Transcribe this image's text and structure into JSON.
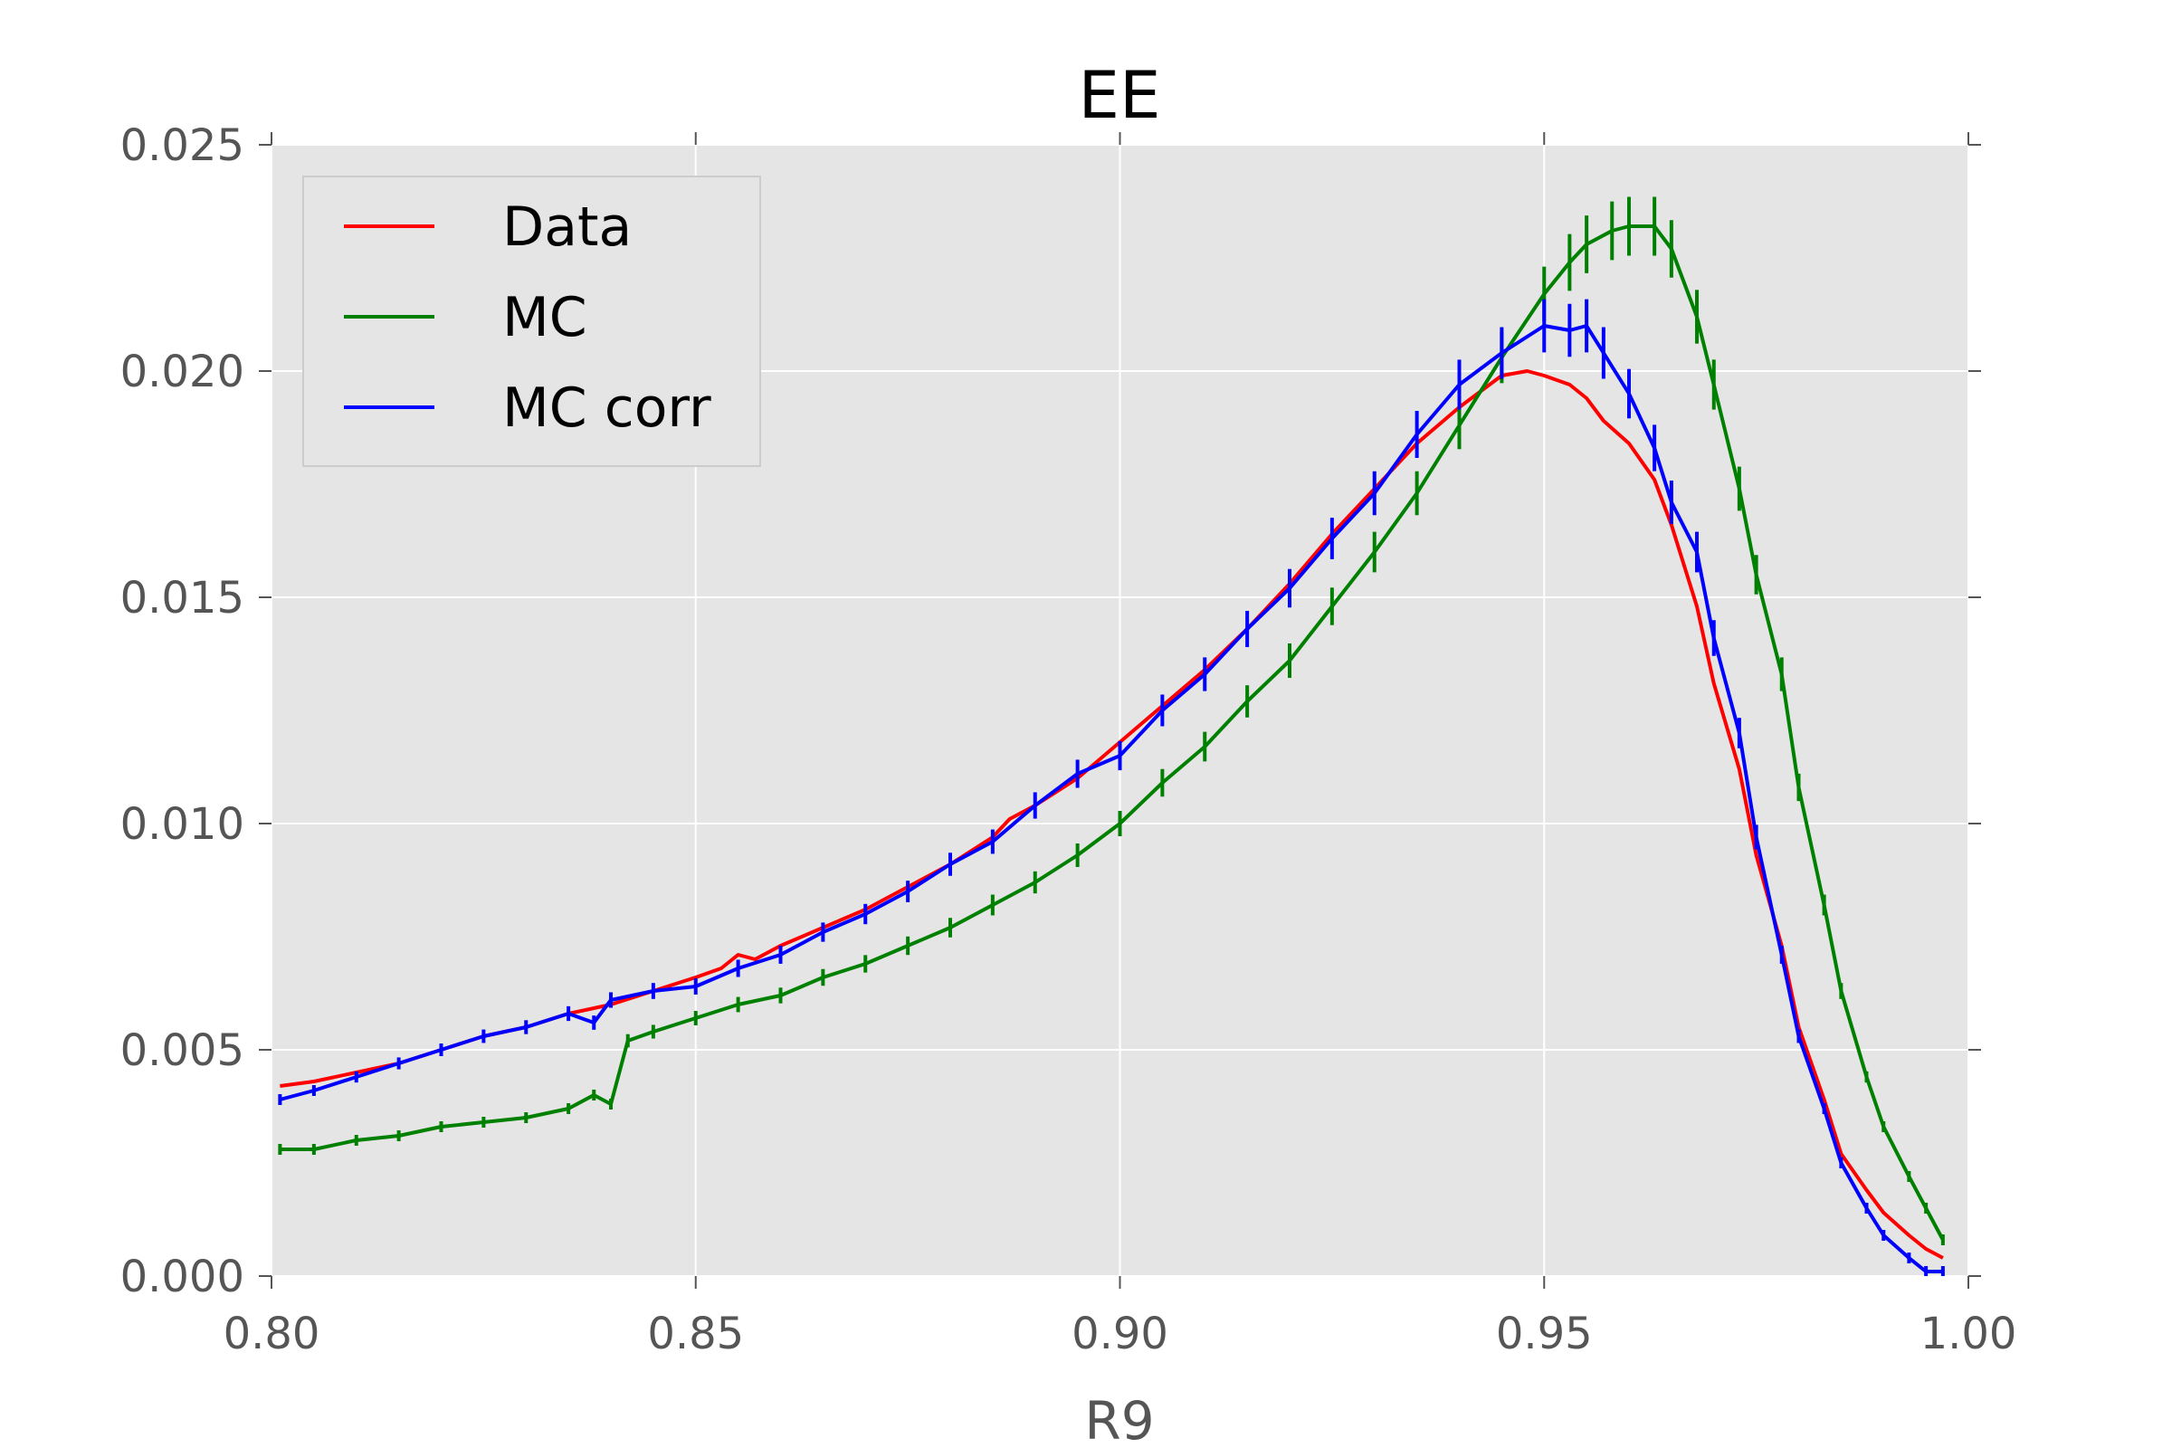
{
  "chart_data": {
    "type": "line",
    "title": "EE",
    "xlabel": "R9",
    "ylabel": "",
    "xlim": [
      0.8,
      1.0
    ],
    "ylim": [
      0.0,
      0.025
    ],
    "xticks": [
      "0.80",
      "0.85",
      "0.90",
      "0.95",
      "1.00"
    ],
    "xtick_values": [
      0.8,
      0.85,
      0.9,
      0.95,
      1.0
    ],
    "yticks": [
      "0.000",
      "0.005",
      "0.010",
      "0.015",
      "0.020",
      "0.025"
    ],
    "ytick_values": [
      0.0,
      0.005,
      0.01,
      0.015,
      0.02,
      0.025
    ],
    "grid": true,
    "background": "#e5e5e5",
    "legend": {
      "position": "top-left"
    },
    "series": [
      {
        "name": "Data",
        "color": "#ff0000",
        "errorbars": false,
        "points": [
          [
            0.801,
            0.0042
          ],
          [
            0.805,
            0.0043
          ],
          [
            0.81,
            0.0045
          ],
          [
            0.815,
            0.0047
          ],
          [
            0.82,
            0.005
          ],
          [
            0.825,
            0.0053
          ],
          [
            0.83,
            0.0055
          ],
          [
            0.835,
            0.0058
          ],
          [
            0.84,
            0.006
          ],
          [
            0.845,
            0.0063
          ],
          [
            0.85,
            0.0066
          ],
          [
            0.853,
            0.0068
          ],
          [
            0.855,
            0.0071
          ],
          [
            0.857,
            0.007
          ],
          [
            0.86,
            0.0073
          ],
          [
            0.865,
            0.0077
          ],
          [
            0.87,
            0.0081
          ],
          [
            0.875,
            0.0086
          ],
          [
            0.88,
            0.0091
          ],
          [
            0.885,
            0.0097
          ],
          [
            0.887,
            0.0101
          ],
          [
            0.89,
            0.0104
          ],
          [
            0.895,
            0.011
          ],
          [
            0.9,
            0.0118
          ],
          [
            0.905,
            0.0126
          ],
          [
            0.91,
            0.0134
          ],
          [
            0.915,
            0.0143
          ],
          [
            0.92,
            0.0153
          ],
          [
            0.925,
            0.0164
          ],
          [
            0.93,
            0.0174
          ],
          [
            0.935,
            0.0184
          ],
          [
            0.94,
            0.0192
          ],
          [
            0.945,
            0.0199
          ],
          [
            0.948,
            0.02
          ],
          [
            0.95,
            0.0199
          ],
          [
            0.953,
            0.0197
          ],
          [
            0.955,
            0.0194
          ],
          [
            0.957,
            0.0189
          ],
          [
            0.96,
            0.0184
          ],
          [
            0.963,
            0.0176
          ],
          [
            0.965,
            0.0166
          ],
          [
            0.968,
            0.0148
          ],
          [
            0.97,
            0.0131
          ],
          [
            0.973,
            0.0112
          ],
          [
            0.975,
            0.0093
          ],
          [
            0.978,
            0.0073
          ],
          [
            0.98,
            0.0055
          ],
          [
            0.983,
            0.0039
          ],
          [
            0.985,
            0.0027
          ],
          [
            0.988,
            0.0019
          ],
          [
            0.99,
            0.0014
          ],
          [
            0.993,
            0.0009
          ],
          [
            0.995,
            0.0006
          ],
          [
            0.997,
            0.0004
          ]
        ]
      },
      {
        "name": "MC",
        "color": "#008000",
        "errorbars": true,
        "points": [
          [
            0.801,
            0.0028
          ],
          [
            0.805,
            0.0028
          ],
          [
            0.81,
            0.003
          ],
          [
            0.815,
            0.0031
          ],
          [
            0.82,
            0.0033
          ],
          [
            0.825,
            0.0034
          ],
          [
            0.83,
            0.0035
          ],
          [
            0.835,
            0.0037
          ],
          [
            0.838,
            0.004
          ],
          [
            0.84,
            0.0038
          ],
          [
            0.842,
            0.0052
          ],
          [
            0.845,
            0.0054
          ],
          [
            0.85,
            0.0057
          ],
          [
            0.855,
            0.006
          ],
          [
            0.86,
            0.0062
          ],
          [
            0.865,
            0.0066
          ],
          [
            0.87,
            0.0069
          ],
          [
            0.875,
            0.0073
          ],
          [
            0.88,
            0.0077
          ],
          [
            0.885,
            0.0082
          ],
          [
            0.89,
            0.0087
          ],
          [
            0.895,
            0.0093
          ],
          [
            0.9,
            0.01
          ],
          [
            0.905,
            0.0109
          ],
          [
            0.91,
            0.0117
          ],
          [
            0.915,
            0.0127
          ],
          [
            0.92,
            0.0136
          ],
          [
            0.925,
            0.0148
          ],
          [
            0.93,
            0.016
          ],
          [
            0.935,
            0.0173
          ],
          [
            0.94,
            0.0188
          ],
          [
            0.945,
            0.0203
          ],
          [
            0.95,
            0.0217
          ],
          [
            0.953,
            0.0224
          ],
          [
            0.955,
            0.0228
          ],
          [
            0.958,
            0.0231
          ],
          [
            0.96,
            0.0232
          ],
          [
            0.963,
            0.0232
          ],
          [
            0.965,
            0.0227
          ],
          [
            0.968,
            0.0212
          ],
          [
            0.97,
            0.0197
          ],
          [
            0.973,
            0.0174
          ],
          [
            0.975,
            0.0155
          ],
          [
            0.978,
            0.0133
          ],
          [
            0.98,
            0.0108
          ],
          [
            0.983,
            0.0082
          ],
          [
            0.985,
            0.0063
          ],
          [
            0.988,
            0.0044
          ],
          [
            0.99,
            0.0033
          ],
          [
            0.993,
            0.0022
          ],
          [
            0.995,
            0.0015
          ],
          [
            0.997,
            0.0008
          ]
        ]
      },
      {
        "name": "MC corr",
        "color": "#0000ff",
        "errorbars": true,
        "points": [
          [
            0.801,
            0.0039
          ],
          [
            0.805,
            0.0041
          ],
          [
            0.81,
            0.0044
          ],
          [
            0.815,
            0.0047
          ],
          [
            0.82,
            0.005
          ],
          [
            0.825,
            0.0053
          ],
          [
            0.83,
            0.0055
          ],
          [
            0.835,
            0.0058
          ],
          [
            0.838,
            0.0056
          ],
          [
            0.84,
            0.0061
          ],
          [
            0.845,
            0.0063
          ],
          [
            0.85,
            0.0064
          ],
          [
            0.855,
            0.0068
          ],
          [
            0.86,
            0.0071
          ],
          [
            0.865,
            0.0076
          ],
          [
            0.87,
            0.008
          ],
          [
            0.875,
            0.0085
          ],
          [
            0.88,
            0.0091
          ],
          [
            0.885,
            0.0096
          ],
          [
            0.89,
            0.0104
          ],
          [
            0.895,
            0.0111
          ],
          [
            0.9,
            0.0115
          ],
          [
            0.905,
            0.0125
          ],
          [
            0.91,
            0.0133
          ],
          [
            0.915,
            0.0143
          ],
          [
            0.92,
            0.0152
          ],
          [
            0.925,
            0.0163
          ],
          [
            0.93,
            0.0173
          ],
          [
            0.935,
            0.0186
          ],
          [
            0.94,
            0.0197
          ],
          [
            0.945,
            0.0204
          ],
          [
            0.95,
            0.021
          ],
          [
            0.953,
            0.0209
          ],
          [
            0.955,
            0.021
          ],
          [
            0.957,
            0.0204
          ],
          [
            0.96,
            0.0195
          ],
          [
            0.963,
            0.0183
          ],
          [
            0.965,
            0.0171
          ],
          [
            0.968,
            0.016
          ],
          [
            0.97,
            0.0141
          ],
          [
            0.973,
            0.012
          ],
          [
            0.975,
            0.0097
          ],
          [
            0.978,
            0.0071
          ],
          [
            0.98,
            0.0053
          ],
          [
            0.983,
            0.0037
          ],
          [
            0.985,
            0.0025
          ],
          [
            0.988,
            0.0015
          ],
          [
            0.99,
            0.0009
          ],
          [
            0.993,
            0.0004
          ],
          [
            0.995,
            0.0001
          ],
          [
            0.997,
            0.0001
          ]
        ]
      }
    ]
  }
}
